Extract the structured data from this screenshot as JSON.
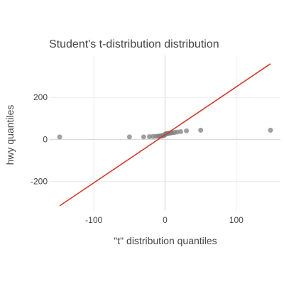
{
  "chart_data": {
    "type": "scatter",
    "title": "Student's t-distribution distribution",
    "xlabel": "\"t\" distribution quantiles",
    "ylabel": "hwy quantiles",
    "xlim": [
      -162,
      162
    ],
    "ylim": [
      -340,
      400
    ],
    "x_ticks": [
      -100,
      0,
      100
    ],
    "x_tick_labels": [
      "-100",
      "0",
      "100"
    ],
    "y_ticks": [
      -200,
      0,
      200
    ],
    "y_tick_labels": [
      "-200",
      "0",
      "200"
    ],
    "grid": true,
    "points": [
      {
        "x": -148,
        "y": 12
      },
      {
        "x": -50,
        "y": 12
      },
      {
        "x": -30,
        "y": 12
      },
      {
        "x": -22,
        "y": 13
      },
      {
        "x": -17,
        "y": 14
      },
      {
        "x": -13,
        "y": 15
      },
      {
        "x": -10,
        "y": 15
      },
      {
        "x": -8,
        "y": 16
      },
      {
        "x": -6,
        "y": 16
      },
      {
        "x": -5,
        "y": 17
      },
      {
        "x": -4,
        "y": 17
      },
      {
        "x": -3,
        "y": 18
      },
      {
        "x": -2,
        "y": 19
      },
      {
        "x": -1.5,
        "y": 20
      },
      {
        "x": -1,
        "y": 21
      },
      {
        "x": -0.5,
        "y": 23
      },
      {
        "x": 0,
        "y": 24
      },
      {
        "x": 0.5,
        "y": 25
      },
      {
        "x": 1,
        "y": 26
      },
      {
        "x": 1.5,
        "y": 26
      },
      {
        "x": 2,
        "y": 27
      },
      {
        "x": 3,
        "y": 28
      },
      {
        "x": 4,
        "y": 29
      },
      {
        "x": 5,
        "y": 29
      },
      {
        "x": 6,
        "y": 30
      },
      {
        "x": 8,
        "y": 31
      },
      {
        "x": 10,
        "y": 32
      },
      {
        "x": 13,
        "y": 33
      },
      {
        "x": 17,
        "y": 35
      },
      {
        "x": 22,
        "y": 37
      },
      {
        "x": 30,
        "y": 41
      },
      {
        "x": 50,
        "y": 44
      },
      {
        "x": 148,
        "y": 44
      }
    ],
    "reference_line": {
      "x": [
        -148,
        148
      ],
      "y": [
        -316,
        360
      ]
    },
    "colors": {
      "points": "#808080",
      "reference_line": "#d23a2a"
    }
  }
}
